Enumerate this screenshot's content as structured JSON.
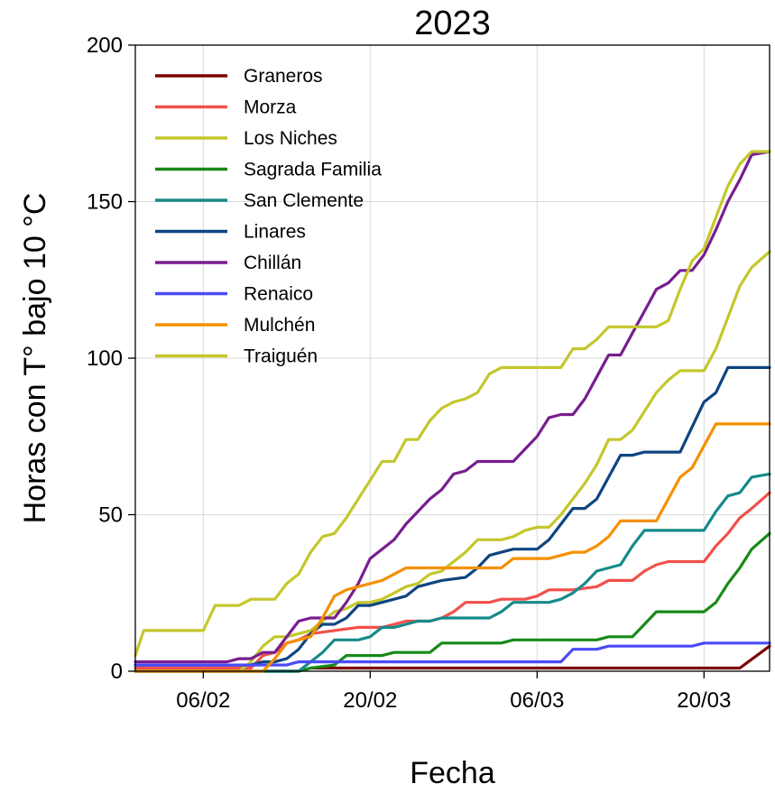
{
  "chart_data": {
    "type": "line",
    "title": "2023",
    "xlabel": "Fecha",
    "ylabel": "Horas con T° bajo 10 °C",
    "x_start_label": "31/01",
    "x_tick_labels": [
      "06/02",
      "20/02",
      "06/03",
      "20/03"
    ],
    "x_tick_days": [
      6,
      20,
      34,
      48
    ],
    "xlim": [
      0.3,
      53.5
    ],
    "ylim": [
      0,
      200
    ],
    "y_ticks": [
      0,
      50,
      100,
      150,
      200
    ],
    "grid": true,
    "legend_position": "top-left",
    "series": [
      {
        "name": "Graneros",
        "color": "#7b0000",
        "points": [
          [
            0.3,
            0
          ],
          [
            14,
            0
          ],
          [
            15,
            1
          ],
          [
            51,
            1
          ],
          [
            53.5,
            8
          ]
        ]
      },
      {
        "name": "Morza",
        "color": "#f2504b",
        "points": [
          [
            0.3,
            1
          ],
          [
            10,
            1
          ],
          [
            11,
            5
          ],
          [
            12,
            6
          ],
          [
            13,
            9
          ],
          [
            14,
            10
          ],
          [
            15,
            12
          ],
          [
            17,
            13
          ],
          [
            19,
            14
          ],
          [
            21,
            14
          ],
          [
            22,
            15
          ],
          [
            23,
            16
          ],
          [
            25,
            16
          ],
          [
            26,
            17
          ],
          [
            27,
            19
          ],
          [
            28,
            22
          ],
          [
            30,
            22
          ],
          [
            31,
            23
          ],
          [
            33,
            23
          ],
          [
            34,
            24
          ],
          [
            35,
            26
          ],
          [
            37,
            26
          ],
          [
            39,
            27
          ],
          [
            40,
            29
          ],
          [
            42,
            29
          ],
          [
            43,
            32
          ],
          [
            44,
            34
          ],
          [
            45,
            35
          ],
          [
            47,
            35
          ],
          [
            48,
            35
          ],
          [
            49,
            40
          ],
          [
            50,
            44
          ],
          [
            51,
            49
          ],
          [
            52,
            52
          ],
          [
            53.5,
            57
          ]
        ]
      },
      {
        "name": "Los Niches",
        "color": "#c4c72c",
        "points": [
          [
            0.3,
            0
          ],
          [
            9,
            0
          ],
          [
            10,
            3
          ],
          [
            11,
            8
          ],
          [
            12,
            11
          ],
          [
            13,
            11
          ],
          [
            14,
            12
          ],
          [
            15,
            13
          ],
          [
            16,
            16
          ],
          [
            17,
            19
          ],
          [
            18,
            20
          ],
          [
            19,
            22
          ],
          [
            20,
            22
          ],
          [
            21,
            23
          ],
          [
            22,
            25
          ],
          [
            23,
            27
          ],
          [
            24,
            28
          ],
          [
            25,
            31
          ],
          [
            26,
            32
          ],
          [
            27,
            35
          ],
          [
            28,
            38
          ],
          [
            29,
            42
          ],
          [
            31,
            42
          ],
          [
            32,
            43
          ],
          [
            33,
            45
          ],
          [
            34,
            46
          ],
          [
            35,
            46
          ],
          [
            36,
            50
          ],
          [
            37,
            55
          ],
          [
            38,
            60
          ],
          [
            39,
            66
          ],
          [
            40,
            74
          ],
          [
            41,
            74
          ],
          [
            42,
            77
          ],
          [
            43,
            83
          ],
          [
            44,
            89
          ],
          [
            45,
            93
          ],
          [
            46,
            96
          ],
          [
            48,
            96
          ],
          [
            49,
            103
          ],
          [
            50,
            113
          ],
          [
            51,
            123
          ],
          [
            52,
            129
          ],
          [
            53.5,
            134
          ]
        ]
      },
      {
        "name": "Sagrada Familia",
        "color": "#178a17",
        "points": [
          [
            0.3,
            0
          ],
          [
            14,
            0
          ],
          [
            15,
            1
          ],
          [
            17,
            2
          ],
          [
            18,
            5
          ],
          [
            21,
            5
          ],
          [
            22,
            6
          ],
          [
            25,
            6
          ],
          [
            26,
            9
          ],
          [
            30,
            9
          ],
          [
            31,
            9
          ],
          [
            32,
            10
          ],
          [
            39,
            10
          ],
          [
            40,
            11
          ],
          [
            42,
            11
          ],
          [
            43,
            15
          ],
          [
            44,
            19
          ],
          [
            48,
            19
          ],
          [
            49,
            22
          ],
          [
            50,
            28
          ],
          [
            51,
            33
          ],
          [
            52,
            39
          ],
          [
            53.5,
            44
          ]
        ]
      },
      {
        "name": "San Clemente",
        "color": "#178a8a",
        "points": [
          [
            0.3,
            0
          ],
          [
            13,
            0
          ],
          [
            14,
            0
          ],
          [
            15,
            3
          ],
          [
            16,
            6
          ],
          [
            17,
            10
          ],
          [
            19,
            10
          ],
          [
            20,
            11
          ],
          [
            21,
            14
          ],
          [
            22,
            14
          ],
          [
            23,
            15
          ],
          [
            24,
            16
          ],
          [
            25,
            16
          ],
          [
            26,
            17
          ],
          [
            30,
            17
          ],
          [
            31,
            19
          ],
          [
            32,
            22
          ],
          [
            35,
            22
          ],
          [
            36,
            23
          ],
          [
            37,
            25
          ],
          [
            38,
            28
          ],
          [
            39,
            32
          ],
          [
            40,
            33
          ],
          [
            41,
            34
          ],
          [
            42,
            40
          ],
          [
            43,
            45
          ],
          [
            47,
            45
          ],
          [
            48,
            45
          ],
          [
            49,
            51
          ],
          [
            50,
            56
          ],
          [
            51,
            57
          ],
          [
            52,
            62
          ],
          [
            53.5,
            63
          ]
        ]
      },
      {
        "name": "Linares",
        "color": "#0e4580",
        "points": [
          [
            0.3,
            2
          ],
          [
            10,
            2
          ],
          [
            11,
            3
          ],
          [
            12,
            3
          ],
          [
            13,
            4
          ],
          [
            14,
            7
          ],
          [
            15,
            12
          ],
          [
            16,
            15
          ],
          [
            17,
            15
          ],
          [
            18,
            17
          ],
          [
            19,
            21
          ],
          [
            20,
            21
          ],
          [
            21,
            22
          ],
          [
            22,
            23
          ],
          [
            23,
            24
          ],
          [
            24,
            27
          ],
          [
            25,
            28
          ],
          [
            26,
            29
          ],
          [
            28,
            30
          ],
          [
            29,
            33
          ],
          [
            30,
            37
          ],
          [
            31,
            38
          ],
          [
            32,
            39
          ],
          [
            34,
            39
          ],
          [
            35,
            42
          ],
          [
            36,
            47
          ],
          [
            37,
            52
          ],
          [
            38,
            52
          ],
          [
            39,
            55
          ],
          [
            40,
            62
          ],
          [
            41,
            69
          ],
          [
            42,
            69
          ],
          [
            43,
            70
          ],
          [
            45,
            70
          ],
          [
            46,
            70
          ],
          [
            47,
            78
          ],
          [
            48,
            86
          ],
          [
            49,
            89
          ],
          [
            50,
            97
          ],
          [
            53.5,
            97
          ]
        ]
      },
      {
        "name": "Chillán",
        "color": "#781e8f",
        "points": [
          [
            0.3,
            3
          ],
          [
            8,
            3
          ],
          [
            9,
            4
          ],
          [
            10,
            4
          ],
          [
            11,
            6
          ],
          [
            12,
            6
          ],
          [
            13,
            11
          ],
          [
            14,
            16
          ],
          [
            15,
            17
          ],
          [
            17,
            17
          ],
          [
            18,
            22
          ],
          [
            19,
            28
          ],
          [
            20,
            36
          ],
          [
            21,
            39
          ],
          [
            22,
            42
          ],
          [
            23,
            47
          ],
          [
            24,
            51
          ],
          [
            25,
            55
          ],
          [
            26,
            58
          ],
          [
            27,
            63
          ],
          [
            28,
            64
          ],
          [
            29,
            67
          ],
          [
            31,
            67
          ],
          [
            32,
            67
          ],
          [
            33,
            71
          ],
          [
            34,
            75
          ],
          [
            35,
            81
          ],
          [
            36,
            82
          ],
          [
            37,
            82
          ],
          [
            38,
            87
          ],
          [
            39,
            94
          ],
          [
            40,
            101
          ],
          [
            41,
            101
          ],
          [
            42,
            108
          ],
          [
            43,
            115
          ],
          [
            44,
            122
          ],
          [
            45,
            124
          ],
          [
            46,
            128
          ],
          [
            47,
            128
          ],
          [
            48,
            133
          ],
          [
            49,
            141
          ],
          [
            50,
            150
          ],
          [
            51,
            157
          ],
          [
            52,
            165
          ],
          [
            53.5,
            166
          ]
        ]
      },
      {
        "name": "Renaico",
        "color": "#4b4bf5",
        "points": [
          [
            0.3,
            2
          ],
          [
            13,
            2
          ],
          [
            14,
            3
          ],
          [
            36,
            3
          ],
          [
            37,
            7
          ],
          [
            39,
            7
          ],
          [
            40,
            8
          ],
          [
            47,
            8
          ],
          [
            48,
            9
          ],
          [
            53.5,
            9
          ]
        ]
      },
      {
        "name": "Mulchén",
        "color": "#f59000",
        "points": [
          [
            0.3,
            0
          ],
          [
            11,
            0
          ],
          [
            12,
            4
          ],
          [
            13,
            9
          ],
          [
            14,
            10
          ],
          [
            15,
            11
          ],
          [
            16,
            17
          ],
          [
            17,
            24
          ],
          [
            18,
            26
          ],
          [
            19,
            27
          ],
          [
            20,
            28
          ],
          [
            21,
            29
          ],
          [
            22,
            31
          ],
          [
            23,
            33
          ],
          [
            30,
            33
          ],
          [
            31,
            33
          ],
          [
            32,
            36
          ],
          [
            35,
            36
          ],
          [
            36,
            37
          ],
          [
            37,
            38
          ],
          [
            38,
            38
          ],
          [
            39,
            40
          ],
          [
            40,
            43
          ],
          [
            41,
            48
          ],
          [
            42,
            48
          ],
          [
            43,
            48
          ],
          [
            44,
            48
          ],
          [
            45,
            55
          ],
          [
            46,
            62
          ],
          [
            47,
            65
          ],
          [
            48,
            72
          ],
          [
            49,
            79
          ],
          [
            53.5,
            79
          ]
        ]
      },
      {
        "name": "Traiguén",
        "color": "#c4c72c",
        "points": [
          [
            0.3,
            5
          ],
          [
            1,
            13
          ],
          [
            3,
            13
          ],
          [
            5,
            13
          ],
          [
            6,
            13
          ],
          [
            7,
            21
          ],
          [
            9,
            21
          ],
          [
            10,
            23
          ],
          [
            12,
            23
          ],
          [
            13,
            28
          ],
          [
            14,
            31
          ],
          [
            15,
            38
          ],
          [
            16,
            43
          ],
          [
            17,
            44
          ],
          [
            18,
            49
          ],
          [
            19,
            55
          ],
          [
            20,
            61
          ],
          [
            21,
            67
          ],
          [
            22,
            67
          ],
          [
            23,
            74
          ],
          [
            24,
            74
          ],
          [
            25,
            80
          ],
          [
            26,
            84
          ],
          [
            27,
            86
          ],
          [
            28,
            87
          ],
          [
            29,
            89
          ],
          [
            30,
            95
          ],
          [
            31,
            97
          ],
          [
            32,
            97
          ],
          [
            34,
            97
          ],
          [
            35,
            97
          ],
          [
            36,
            97
          ],
          [
            37,
            103
          ],
          [
            38,
            103
          ],
          [
            39,
            106
          ],
          [
            40,
            110
          ],
          [
            41,
            110
          ],
          [
            42,
            110
          ],
          [
            43,
            110
          ],
          [
            44,
            110
          ],
          [
            45,
            112
          ],
          [
            46,
            122
          ],
          [
            47,
            131
          ],
          [
            48,
            135
          ],
          [
            49,
            145
          ],
          [
            50,
            155
          ],
          [
            51,
            162
          ],
          [
            52,
            166
          ],
          [
            53.5,
            166
          ]
        ]
      }
    ]
  }
}
